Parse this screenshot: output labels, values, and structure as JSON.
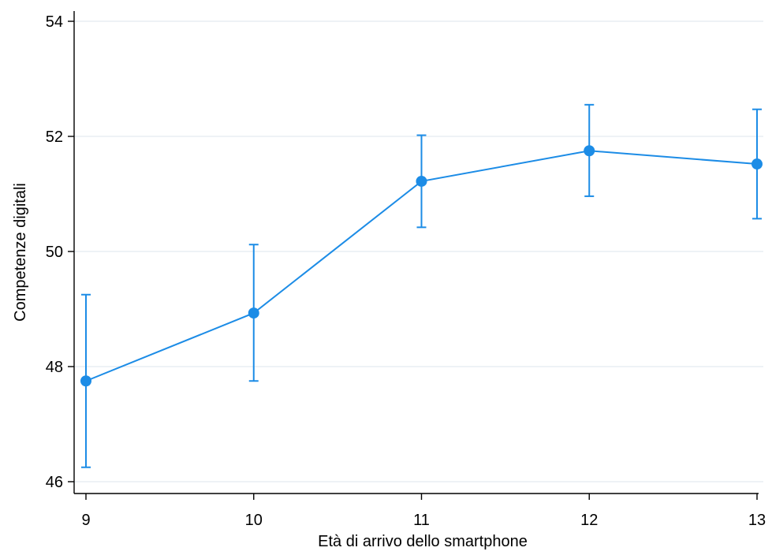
{
  "chart_data": {
    "type": "line",
    "xlabel": "Età di arrivo dello smartphone",
    "ylabel": "Competenze digitali",
    "xlim": [
      9,
      13
    ],
    "ylim": [
      46,
      54
    ],
    "x_ticks": [
      "9",
      "10",
      "11",
      "12",
      "13"
    ],
    "y_ticks": [
      "46",
      "48",
      "50",
      "52",
      "54"
    ],
    "grid": "horizontal",
    "legend": "none",
    "series": [
      {
        "color": "#1c8ce6",
        "x": [
          9,
          10,
          11,
          12,
          13
        ],
        "y": [
          47.75,
          48.93,
          51.22,
          51.75,
          51.52
        ],
        "ci_low": [
          46.25,
          47.75,
          50.42,
          50.96,
          50.57
        ],
        "ci_high": [
          49.25,
          50.12,
          52.02,
          52.55,
          52.47
        ]
      }
    ]
  }
}
